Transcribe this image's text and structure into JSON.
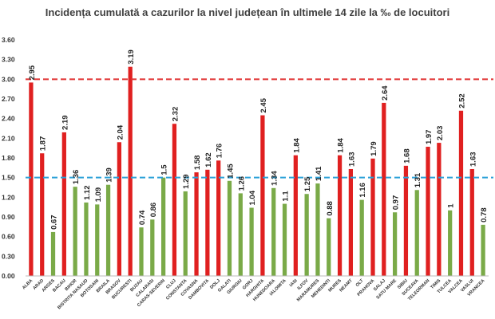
{
  "chart_data": {
    "type": "bar",
    "title": "Incidența cumulată a cazurilor la nivel județean în ultimele 14 zile la ‰ de locuitori",
    "categories": [
      "ALBA",
      "ARAD",
      "ARGES",
      "BACAU",
      "BIHOR",
      "BISTRITA NASAUD",
      "BOTOSANI",
      "BRAILA",
      "BRASOV",
      "BUCURESTI",
      "BUZAU",
      "CALARASI",
      "CARAS-SEVERIN",
      "CLUJ",
      "CONSTANTA",
      "COVASNA",
      "DAMBOVITA",
      "DOLJ",
      "GALATI",
      "GIURGIU",
      "GORJ",
      "HARGHITA",
      "HUNEDOARA",
      "IALOMITA",
      "IASI",
      "ILFOV",
      "MARAMURES",
      "MEHEDINTI",
      "MURES",
      "NEAMT",
      "OLT",
      "PRAHOVA",
      "SALAJ",
      "SATU MARE",
      "SIBIU",
      "SUCEAVA",
      "TELEORMAN",
      "TIMIS",
      "TULCEA",
      "VALCEA",
      "VASLUI",
      "VRANCEA"
    ],
    "values": [
      2.95,
      1.87,
      0.67,
      2.19,
      1.36,
      1.12,
      1.09,
      1.39,
      2.04,
      3.19,
      0.74,
      0.86,
      1.5,
      2.32,
      1.29,
      1.58,
      1.62,
      1.76,
      1.45,
      1.26,
      1.04,
      2.45,
      1.34,
      1.1,
      1.84,
      1.25,
      1.41,
      0.88,
      1.84,
      1.63,
      1.16,
      1.79,
      2.64,
      0.97,
      1.68,
      1.31,
      1.97,
      2.03,
      1,
      2.52,
      1.63,
      0.78
    ],
    "value_labels": [
      "2.95",
      "1.87",
      "0.67",
      "2.19",
      "1.36",
      "1.12",
      "1.09",
      "1.39",
      "2.04",
      "3.19",
      "0.74",
      "0.86",
      "1.5",
      "2.32",
      "1.29",
      "1.58",
      "1.62",
      "1.76",
      "1.45",
      "1.26",
      "1.04",
      "2.45",
      "1.34",
      "1.1",
      "1.84",
      "1.25",
      "1.41",
      "0.88",
      "1.84",
      "1.63",
      "1.16",
      "1.79",
      "2.64",
      "0.97",
      "1.68",
      "1.31",
      "1.97",
      "2.03",
      "1",
      "2.52",
      "1.63",
      "0.78"
    ],
    "y_ticks": [
      "0.00",
      "0.30",
      "0.60",
      "0.90",
      "1.20",
      "1.50",
      "1.80",
      "2.10",
      "2.40",
      "2.70",
      "3.00",
      "3.30",
      "3.60"
    ],
    "ylim": [
      0,
      3.6
    ],
    "reference_lines": [
      {
        "value": 3.0,
        "color": "#e03030",
        "style": "dashed"
      },
      {
        "value": 1.5,
        "color": "#2aa0d8",
        "style": "dashed"
      }
    ],
    "colors": {
      "above_threshold": "#e02020",
      "below_threshold": "#7aaa48"
    },
    "color_threshold": 1.5,
    "grid": false,
    "legend": "none"
  }
}
